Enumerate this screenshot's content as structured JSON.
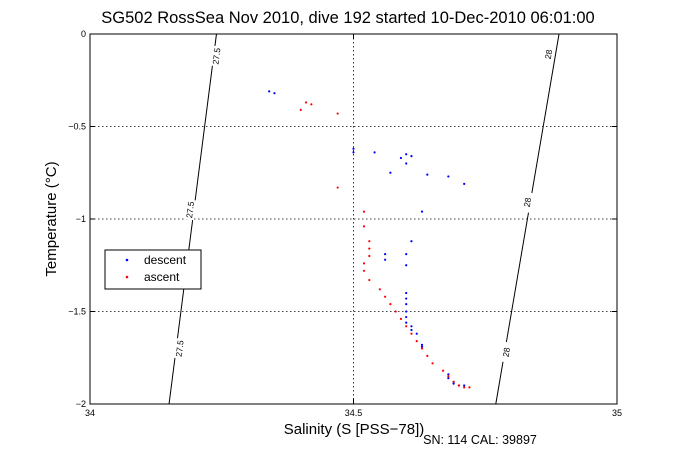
{
  "chart_data": {
    "type": "scatter",
    "title": "SG502 RossSea Nov 2010, dive 192 started 10-Dec-2010 06:01:00",
    "xlabel": "Salinity (S [PSS−78])",
    "ylabel": "Temperature (°C)",
    "footer": "SN: 114  CAL: 39897",
    "xlim": [
      34,
      35
    ],
    "ylim": [
      -2,
      0
    ],
    "xticks": [
      34,
      34.5,
      35
    ],
    "xtick_labels": [
      "34",
      "34.5",
      "35"
    ],
    "yticks": [
      0,
      -0.5,
      -1,
      -1.5,
      -2
    ],
    "ytick_labels": [
      "0",
      "−0.5",
      "−1",
      "−1.5",
      "−2"
    ],
    "grid": true,
    "legend_position": "left",
    "colors": {
      "descent": "#0000ff",
      "ascent": "#ff0000"
    },
    "contours": [
      {
        "label": "27.5",
        "points": [
          [
            34.15,
            -2
          ],
          [
            34.24,
            0
          ]
        ],
        "label_positions": [
          [
            34.17,
            -1.7
          ],
          [
            34.19,
            -0.95
          ],
          [
            34.24,
            -0.12
          ]
        ]
      },
      {
        "label": "28",
        "points": [
          [
            34.77,
            -2
          ],
          [
            34.89,
            0
          ]
        ],
        "label_positions": [
          [
            34.79,
            -1.72
          ],
          [
            34.83,
            -0.91
          ],
          [
            34.87,
            -0.11
          ]
        ]
      }
    ],
    "series": [
      {
        "name": "descent",
        "points": [
          [
            34.34,
            -0.31
          ],
          [
            34.35,
            -0.32
          ],
          [
            34.5,
            -0.62
          ],
          [
            34.5,
            -0.64
          ],
          [
            34.54,
            -0.64
          ],
          [
            34.6,
            -0.65
          ],
          [
            34.61,
            -0.66
          ],
          [
            34.59,
            -0.67
          ],
          [
            34.6,
            -0.7
          ],
          [
            34.57,
            -0.75
          ],
          [
            34.64,
            -0.76
          ],
          [
            34.68,
            -0.77
          ],
          [
            34.71,
            -0.81
          ],
          [
            34.63,
            -0.96
          ],
          [
            34.61,
            -1.12
          ],
          [
            34.6,
            -1.19
          ],
          [
            34.56,
            -1.19
          ],
          [
            34.56,
            -1.22
          ],
          [
            34.6,
            -1.25
          ],
          [
            34.6,
            -1.4
          ],
          [
            34.6,
            -1.43
          ],
          [
            34.6,
            -1.46
          ],
          [
            34.6,
            -1.5
          ],
          [
            34.6,
            -1.53
          ],
          [
            34.6,
            -1.56
          ],
          [
            34.61,
            -1.58
          ],
          [
            34.61,
            -1.6
          ],
          [
            34.62,
            -1.62
          ],
          [
            34.63,
            -1.68
          ],
          [
            34.63,
            -1.69
          ],
          [
            34.68,
            -1.84
          ],
          [
            34.68,
            -1.86
          ],
          [
            34.69,
            -1.88
          ],
          [
            34.69,
            -1.89
          ],
          [
            34.7,
            -1.9
          ],
          [
            34.71,
            -1.9
          ]
        ]
      },
      {
        "name": "ascent",
        "points": [
          [
            34.41,
            -0.37
          ],
          [
            34.42,
            -0.38
          ],
          [
            34.4,
            -0.41
          ],
          [
            34.47,
            -0.43
          ],
          [
            34.47,
            -0.83
          ],
          [
            34.52,
            -0.96
          ],
          [
            34.52,
            -1.04
          ],
          [
            34.53,
            -1.12
          ],
          [
            34.53,
            -1.16
          ],
          [
            34.53,
            -1.2
          ],
          [
            34.52,
            -1.24
          ],
          [
            34.52,
            -1.28
          ],
          [
            34.53,
            -1.33
          ],
          [
            34.55,
            -1.38
          ],
          [
            34.56,
            -1.42
          ],
          [
            34.57,
            -1.46
          ],
          [
            34.58,
            -1.5
          ],
          [
            34.59,
            -1.54
          ],
          [
            34.6,
            -1.58
          ],
          [
            34.61,
            -1.62
          ],
          [
            34.62,
            -1.66
          ],
          [
            34.63,
            -1.7
          ],
          [
            34.64,
            -1.74
          ],
          [
            34.65,
            -1.78
          ],
          [
            34.67,
            -1.82
          ],
          [
            34.68,
            -1.85
          ],
          [
            34.69,
            -1.88
          ],
          [
            34.7,
            -1.9
          ],
          [
            34.71,
            -1.91
          ],
          [
            34.72,
            -1.91
          ]
        ]
      }
    ]
  }
}
